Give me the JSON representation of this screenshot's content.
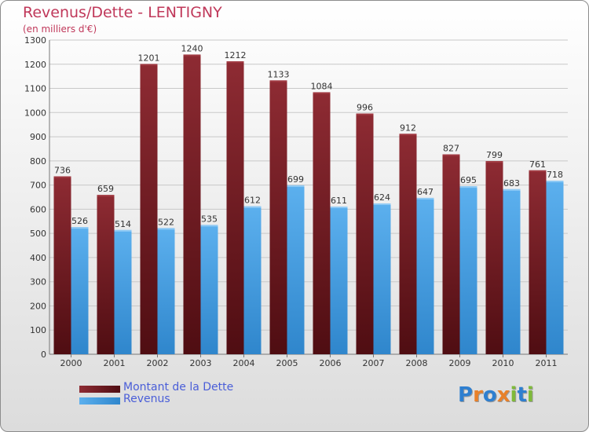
{
  "header": {
    "title": "Revenus/Dette - LENTIGNY",
    "subtitle": "(en milliers d'€)"
  },
  "logo": {
    "text": "Proxiti",
    "letters": [
      {
        "ch": "P",
        "color": "#2e7fd0"
      },
      {
        "ch": "r",
        "color": "#e8812a"
      },
      {
        "ch": "o",
        "color": "#2e7fd0"
      },
      {
        "ch": "x",
        "color": "#e8812a"
      },
      {
        "ch": "i",
        "color": "#7fba3a"
      },
      {
        "ch": "t",
        "color": "#2e7fd0"
      },
      {
        "ch": "i",
        "color": "#7fba3a"
      }
    ]
  },
  "colors": {
    "title": "#c0385a",
    "debt": "#7a1f26",
    "revenue": "#4aa3e6",
    "axis_text": "#333333",
    "legend_text": "#4a5ed8"
  },
  "chart_data": {
    "type": "bar",
    "categories": [
      "2000",
      "2001",
      "2002",
      "2003",
      "2004",
      "2005",
      "2006",
      "2007",
      "2008",
      "2009",
      "2010",
      "2011"
    ],
    "series": [
      {
        "name": "Montant de la Dette",
        "values": [
          736,
          659,
          1201,
          1240,
          1212,
          1133,
          1084,
          996,
          912,
          827,
          799,
          761
        ]
      },
      {
        "name": "Revenus",
        "values": [
          526,
          514,
          522,
          535,
          612,
          699,
          611,
          624,
          647,
          695,
          683,
          718
        ]
      }
    ],
    "ylim": [
      0,
      1300
    ],
    "yticks": [
      0,
      100,
      200,
      300,
      400,
      500,
      600,
      700,
      800,
      900,
      1000,
      1100,
      1200,
      1300
    ],
    "grid": true,
    "legend": "bottom-left"
  }
}
